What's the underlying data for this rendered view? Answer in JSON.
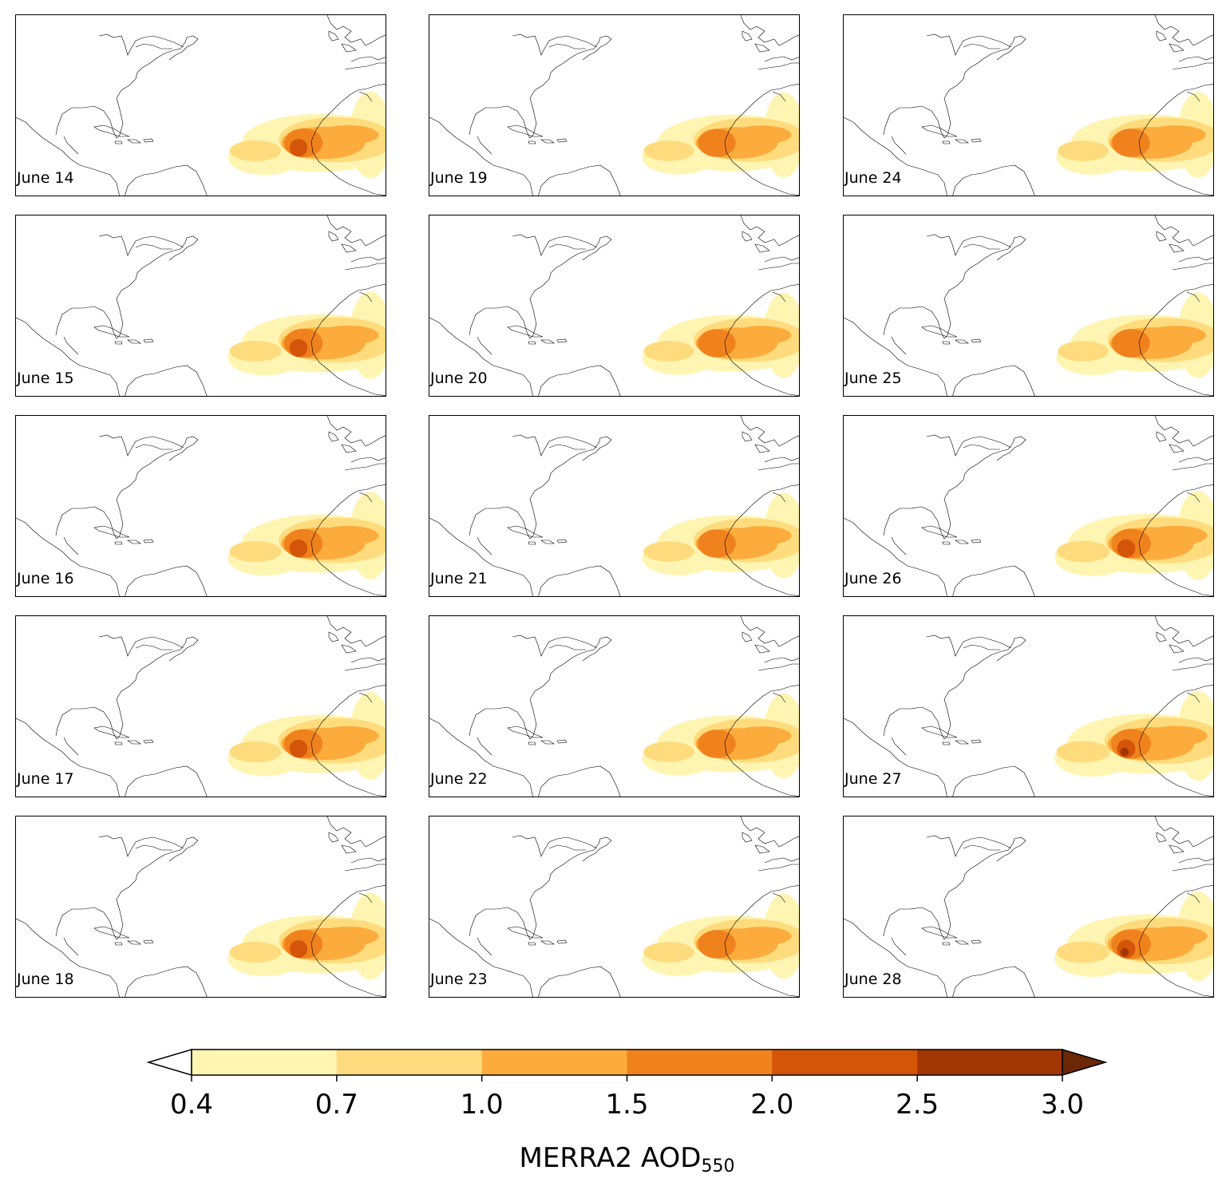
{
  "chart_data": {
    "type": "heatmap",
    "map_region": "North Atlantic basin with eastern North America, Caribbean, Europe and North-West Africa coastlines",
    "panels": [
      {
        "label": "June 14",
        "strength": 0.8
      },
      {
        "label": "June 15",
        "strength": 0.82
      },
      {
        "label": "June 16",
        "strength": 0.82
      },
      {
        "label": "June 17",
        "strength": 0.83
      },
      {
        "label": "June 18",
        "strength": 0.8
      },
      {
        "label": "June 19",
        "strength": 0.68
      },
      {
        "label": "June 20",
        "strength": 0.68
      },
      {
        "label": "June 21",
        "strength": 0.7
      },
      {
        "label": "June 22",
        "strength": 0.7
      },
      {
        "label": "June 23",
        "strength": 0.7
      },
      {
        "label": "June 24",
        "strength": 0.72
      },
      {
        "label": "June 25",
        "strength": 0.72
      },
      {
        "label": "June 26",
        "strength": 0.92
      },
      {
        "label": "June 27",
        "strength": 0.97
      },
      {
        "label": "June 28",
        "strength": 0.96
      }
    ],
    "colorbar": {
      "ticks": [
        "0.4",
        "0.7",
        "1.0",
        "1.5",
        "2.0",
        "2.5",
        "3.0"
      ],
      "colors": [
        "#fff5b3",
        "#fedc7e",
        "#fcac3c",
        "#f0821e",
        "#d45509",
        "#a33703"
      ],
      "extend_min_color": "#ffffff",
      "extend_max_color": "#6b2706",
      "label_main": "MERRA2 AOD",
      "label_sub": "550"
    }
  }
}
